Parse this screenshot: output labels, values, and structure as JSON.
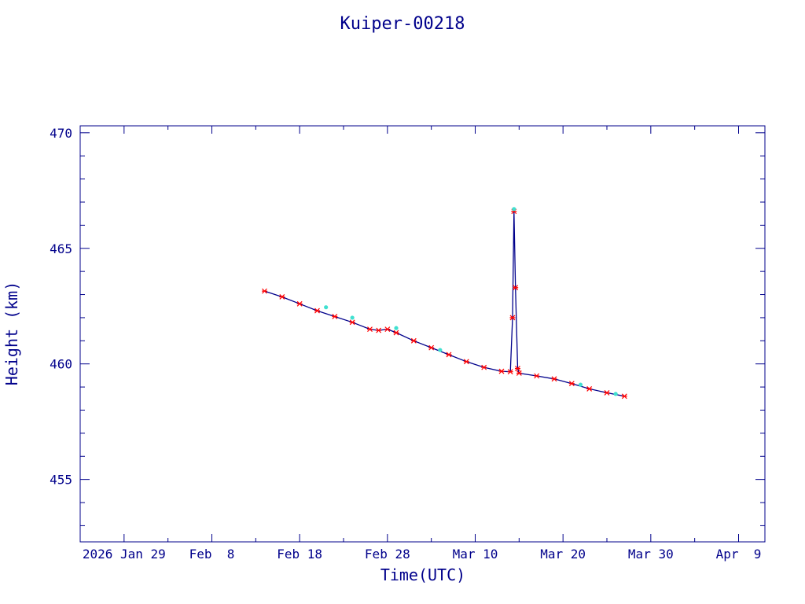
{
  "chart_data": {
    "type": "line",
    "title": "Kuiper-00218",
    "xlabel": "Time(UTC)",
    "ylabel": "Height (km)",
    "x_ticks": [
      "2026 Jan 29",
      "Feb  8",
      "Feb 18",
      "Feb 28",
      "Mar 10",
      "Mar 20",
      "Mar 30",
      "Apr  9"
    ],
    "x_range": [
      "2026-01-24",
      "2026-04-12"
    ],
    "ylim": [
      452.3,
      470.3
    ],
    "y_ticks": [
      455,
      460,
      465,
      470
    ],
    "grid": false,
    "colors": {
      "axes": "#00008b",
      "line": "#00008b",
      "points": "#ff0000",
      "highlights": "#40e0d0"
    },
    "series": [
      {
        "x": [
          "2026-02-14",
          "2026-02-16",
          "2026-02-18",
          "2026-02-20",
          "2026-02-22",
          "2026-02-24",
          "2026-02-26",
          "2026-02-27",
          "2026-02-28",
          "2026-03-01",
          "2026-03-03",
          "2026-03-05",
          "2026-03-07",
          "2026-03-09",
          "2026-03-11",
          "2026-03-13",
          "2026-03-14",
          "2026-03-14 06:00",
          "2026-03-14 10:00",
          "2026-03-14 14:00",
          "2026-03-14 20:00",
          "2026-03-15",
          "2026-03-17",
          "2026-03-19",
          "2026-03-21",
          "2026-03-23",
          "2026-03-25",
          "2026-03-27"
        ],
        "y": [
          463.15,
          462.9,
          462.6,
          462.3,
          462.05,
          461.8,
          461.5,
          461.45,
          461.5,
          461.35,
          461.0,
          460.7,
          460.4,
          460.1,
          459.85,
          459.68,
          459.66,
          462.0,
          466.6,
          463.3,
          459.8,
          459.6,
          459.48,
          459.35,
          459.15,
          458.92,
          458.75,
          458.6
        ]
      }
    ],
    "highlight_points": [
      {
        "x": "2026-02-21",
        "y": 462.45
      },
      {
        "x": "2026-02-24",
        "y": 462.0
      },
      {
        "x": "2026-03-01",
        "y": 461.55
      },
      {
        "x": "2026-03-06",
        "y": 460.6
      },
      {
        "x": "2026-03-14 10:00",
        "y": 466.7
      },
      {
        "x": "2026-03-22",
        "y": 459.1
      },
      {
        "x": "2026-03-26",
        "y": 458.7
      }
    ]
  }
}
